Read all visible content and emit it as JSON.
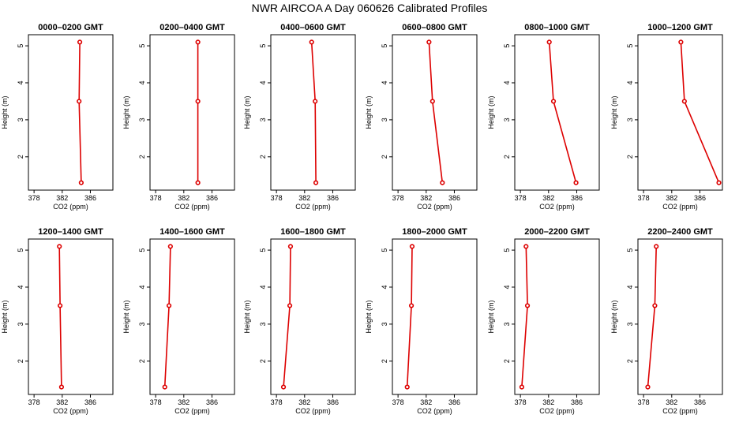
{
  "title": "NWR AIRCOA A  Day 060626  Calibrated Profiles",
  "chart_data": {
    "type": "line",
    "xlabel": "CO2 (ppm)",
    "ylabel": "Height (m)",
    "xlim": [
      377.2,
      389.2
    ],
    "ylim": [
      1.1,
      5.3
    ],
    "xticks": [
      378,
      382,
      386
    ],
    "yticks": [
      2,
      3,
      4,
      5
    ],
    "panels": [
      {
        "title": "0000–0200 GMT",
        "points": [
          {
            "height": 1.3,
            "co2": 384.7
          },
          {
            "height": 3.5,
            "co2": 384.4
          },
          {
            "height": 5.1,
            "co2": 384.5
          }
        ]
      },
      {
        "title": "0200–0400 GMT",
        "points": [
          {
            "height": 1.3,
            "co2": 384.0
          },
          {
            "height": 3.5,
            "co2": 384.0
          },
          {
            "height": 5.1,
            "co2": 384.0
          }
        ]
      },
      {
        "title": "0400–0600 GMT",
        "points": [
          {
            "height": 1.3,
            "co2": 383.6
          },
          {
            "height": 3.5,
            "co2": 383.5
          },
          {
            "height": 5.1,
            "co2": 383.0
          }
        ]
      },
      {
        "title": "0600–0800 GMT",
        "points": [
          {
            "height": 1.3,
            "co2": 384.3
          },
          {
            "height": 3.5,
            "co2": 382.9
          },
          {
            "height": 5.1,
            "co2": 382.4
          }
        ]
      },
      {
        "title": "0800–1000 GMT",
        "points": [
          {
            "height": 1.3,
            "co2": 385.9
          },
          {
            "height": 3.5,
            "co2": 382.7
          },
          {
            "height": 5.1,
            "co2": 382.1
          }
        ]
      },
      {
        "title": "1000–1200 GMT",
        "points": [
          {
            "height": 1.3,
            "co2": 388.7
          },
          {
            "height": 3.5,
            "co2": 383.8
          },
          {
            "height": 5.1,
            "co2": 383.3
          }
        ]
      },
      {
        "title": "1200–1400 GMT",
        "points": [
          {
            "height": 1.3,
            "co2": 381.9
          },
          {
            "height": 3.5,
            "co2": 381.7
          },
          {
            "height": 5.1,
            "co2": 381.6
          }
        ]
      },
      {
        "title": "1400–1600 GMT",
        "points": [
          {
            "height": 1.3,
            "co2": 379.3
          },
          {
            "height": 3.5,
            "co2": 379.9
          },
          {
            "height": 5.1,
            "co2": 380.1
          }
        ]
      },
      {
        "title": "1600–1800 GMT",
        "points": [
          {
            "height": 1.3,
            "co2": 379.0
          },
          {
            "height": 3.5,
            "co2": 379.9
          },
          {
            "height": 5.1,
            "co2": 380.0
          }
        ]
      },
      {
        "title": "1800–2000 GMT",
        "points": [
          {
            "height": 1.3,
            "co2": 379.3
          },
          {
            "height": 3.5,
            "co2": 379.9
          },
          {
            "height": 5.1,
            "co2": 380.0
          }
        ]
      },
      {
        "title": "2000–2200 GMT",
        "points": [
          {
            "height": 1.3,
            "co2": 378.2
          },
          {
            "height": 3.5,
            "co2": 379.0
          },
          {
            "height": 5.1,
            "co2": 378.8
          }
        ]
      },
      {
        "title": "2200–2400 GMT",
        "points": [
          {
            "height": 1.3,
            "co2": 378.6
          },
          {
            "height": 3.5,
            "co2": 379.6
          },
          {
            "height": 5.1,
            "co2": 379.8
          }
        ]
      }
    ]
  }
}
